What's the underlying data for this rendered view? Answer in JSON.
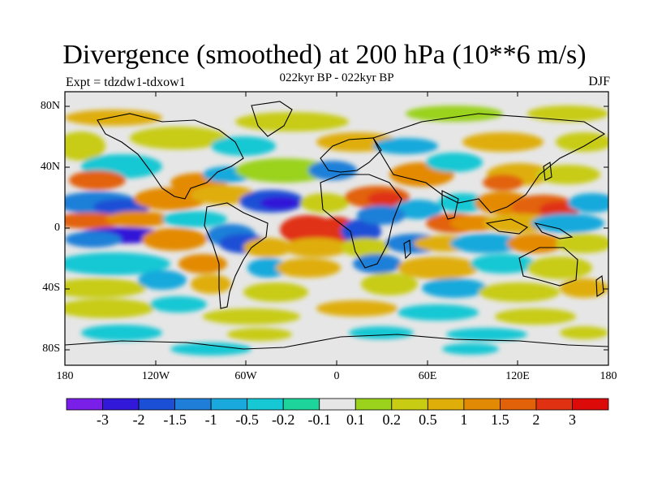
{
  "title": "Divergence (smoothed) at 200 hPa (10**6 m/s)",
  "subtitle": "022kyr BP - 022kyr BP",
  "experiment": "Expt = tdzdw1-tdxow1",
  "season": "DJF",
  "latitude_labels": [
    "80N",
    "40N",
    "0",
    "40S",
    "80S"
  ],
  "longitude_labels": [
    "180",
    "120W",
    "60W",
    "0",
    "60E",
    "120E",
    "180"
  ],
  "colorbar": {
    "labels": [
      "-3",
      "-2",
      "-1.5",
      "-1",
      "-0.5",
      "-0.2",
      "-0.1",
      "0.1",
      "0.2",
      "0.5",
      "1",
      "1.5",
      "2",
      "3"
    ],
    "colors": [
      "#7a1fe8",
      "#3218d8",
      "#1a4fd6",
      "#1f7fd8",
      "#19a9dc",
      "#16c7d4",
      "#1dd49a",
      "#e6e6e6",
      "#9ad21c",
      "#c8cc12",
      "#dfae08",
      "#e38a05",
      "#e2620a",
      "#e03212",
      "#dd0a0a"
    ]
  },
  "colors": {
    "land_outline": "#000000",
    "background": "#e6e6e6"
  }
}
